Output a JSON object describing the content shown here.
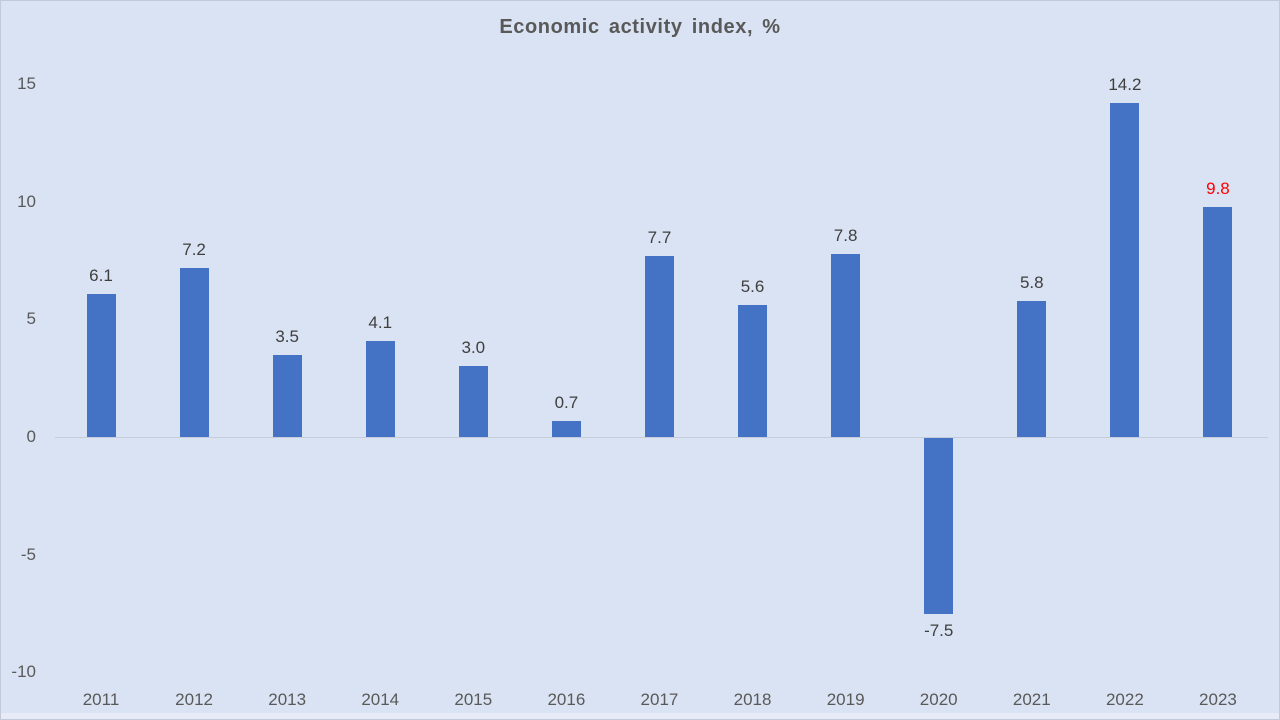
{
  "chart_data": {
    "type": "bar",
    "title": "Economic activity index, %",
    "categories": [
      "2011",
      "2012",
      "2013",
      "2014",
      "2015",
      "2016",
      "2017",
      "2018",
      "2019",
      "2020",
      "2021",
      "2022",
      "2023"
    ],
    "values": [
      6.1,
      7.2,
      3.5,
      4.1,
      3.0,
      0.7,
      7.7,
      5.6,
      7.8,
      -7.5,
      5.8,
      14.2,
      9.8
    ],
    "value_labels": [
      "6.1",
      "7.2",
      "3.5",
      "4.1",
      "3.0",
      "0.7",
      "7.7",
      "5.6",
      "7.8",
      "-7.5",
      "5.8",
      "14.2",
      "9.8"
    ],
    "highlight_index": 12,
    "highlight_color": "#ff0000",
    "yticks": [
      15,
      10,
      5,
      0,
      -5,
      -10
    ],
    "ylim": [
      -10.5,
      15.8
    ],
    "xlabel": "",
    "ylabel": "",
    "legend": "none",
    "grid": "zero-line-only",
    "bar_color": "#4472c4",
    "background_color": "#dae3f3",
    "axis_text_color": "#595959",
    "label_text_color": "#3f3f3f",
    "axis_line_color": "#c6ccd9"
  }
}
